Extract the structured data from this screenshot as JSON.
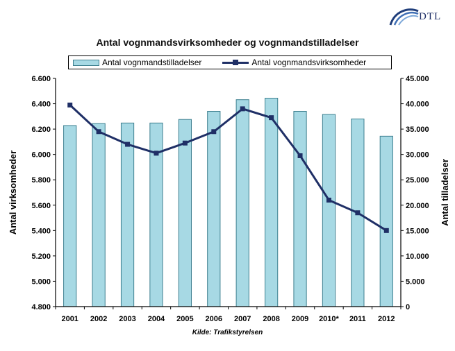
{
  "logo": {
    "text": "DTL"
  },
  "chart_data": {
    "type": "bar+line",
    "title": "Antal vognmandsvirksomheder og vognmandstilladelser",
    "categories": [
      "2001",
      "2002",
      "2003",
      "2004",
      "2005",
      "2006",
      "2007",
      "2008",
      "2009",
      "2010*",
      "2011",
      "2012"
    ],
    "series": [
      {
        "name": "Antal vognmandstilladelser",
        "type": "bar",
        "axis": "right",
        "values": [
          35700,
          36100,
          36200,
          36200,
          36900,
          38500,
          40800,
          41100,
          38500,
          37900,
          37000,
          33600
        ]
      },
      {
        "name": "Antal vognmandsvirksomheder",
        "type": "line",
        "axis": "left",
        "values": [
          6390,
          6180,
          6080,
          6010,
          6090,
          6180,
          6360,
          6290,
          5990,
          5640,
          5540,
          5400
        ]
      }
    ],
    "ylabel_left": "Antal virksomheder",
    "ylabel_right": "Antal tilladelser",
    "ylim_left": [
      4800,
      6600
    ],
    "ylim_right": [
      0,
      45000
    ],
    "yticks_left": [
      "4.800",
      "5.000",
      "5.200",
      "5.400",
      "5.600",
      "5.800",
      "6.000",
      "6.200",
      "6.400",
      "6.600"
    ],
    "yticks_right": [
      "0",
      "5.000",
      "10.000",
      "15.000",
      "20.000",
      "25.000",
      "30.000",
      "35.000",
      "40.000",
      "45.000"
    ],
    "grid": false,
    "legend_position": "top",
    "colors": {
      "bar_fill": "#a7d9e4",
      "bar_stroke": "#3d7f8f",
      "line": "#1f2f66",
      "axis": "#000000"
    }
  },
  "source": "Kilde: Trafikstyrelsen"
}
